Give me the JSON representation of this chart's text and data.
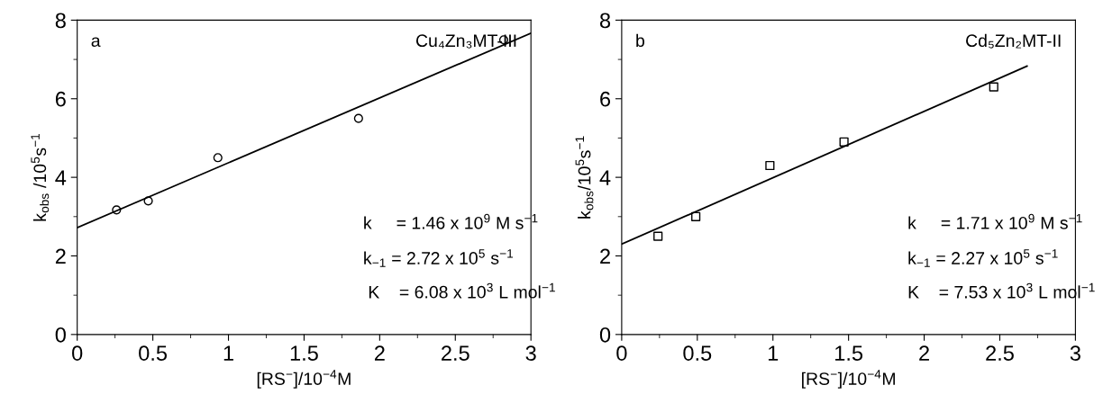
{
  "chart_data": [
    {
      "type": "scatter",
      "xlabel": "[RS$^{−}$]/10$^{−4}$M",
      "ylabel": "k$_{obs}$ /10$^{5}$s$^{−1}$",
      "series": [
        {
          "color": "#000000",
          "marker": "circle",
          "x": [
            0.26,
            0.47,
            0.93,
            1.86,
            2.82
          ],
          "values": [
            3.17,
            3.4,
            4.5,
            5.5,
            7.5
          ]
        },
        {
          "type": "line",
          "color": "#000000",
          "line_style": "solid",
          "x": [
            0,
            3
          ],
          "values": [
            2.72,
            7.67
          ]
        }
      ],
      "xlim": [
        0,
        3
      ],
      "ylim": [
        0,
        8
      ],
      "xticks": [
        0,
        {
          "value": 0.25,
          "label": null
        },
        0.5,
        {
          "value": 0.75,
          "label": null
        },
        1,
        {
          "value": 1.25,
          "label": null
        },
        1.5,
        {
          "value": 1.75,
          "label": null
        },
        2,
        {
          "value": 2.25,
          "label": null
        },
        2.5,
        {
          "value": 2.75,
          "label": null
        },
        3
      ],
      "yticks": [
        0,
        {
          "value": 1,
          "label": null
        },
        2,
        {
          "value": 3,
          "label": null
        },
        4,
        {
          "value": 5,
          "label": null
        },
        6,
        {
          "value": 7,
          "label": null
        },
        8
      ],
      "grid": false,
      "legend": false,
      "annotations": [
        "a",
        "Cu₄Zn₃MT-III",
        "k     = 1.46 x 10$^{9}$ M s$^{−1}$",
        "k$_{−1}$ = 2.72 x 10$^{5}$ s$^{−1}$",
        " K    = 6.08 x 10$^{3}$ L mol$^{−1}$"
      ]
    },
    {
      "type": "scatter",
      "xlabel": "[RS$^{−}$]/10$^{−4}$M",
      "ylabel": "k$_{obs}$/10$^{5}$s$^{−1}$",
      "series": [
        {
          "color": "#000000",
          "marker": "square",
          "x": [
            0.24,
            0.49,
            0.98,
            1.47,
            2.46
          ],
          "values": [
            2.5,
            3.0,
            4.3,
            4.9,
            6.3
          ]
        },
        {
          "type": "line",
          "color": "#000000",
          "line_style": "solid",
          "x": [
            0,
            2.68
          ],
          "values": [
            2.3,
            6.83
          ]
        }
      ],
      "xlim": [
        0,
        3
      ],
      "ylim": [
        0,
        8
      ],
      "xticks": [
        0,
        {
          "value": 0.25,
          "label": null
        },
        0.5,
        {
          "value": 0.75,
          "label": null
        },
        1,
        {
          "value": 1.25,
          "label": null
        },
        1.5,
        {
          "value": 1.75,
          "label": null
        },
        2,
        {
          "value": 2.25,
          "label": null
        },
        2.5,
        {
          "value": 2.75,
          "label": null
        },
        3
      ],
      "yticks": [
        0,
        {
          "value": 1,
          "label": null
        },
        2,
        {
          "value": 3,
          "label": null
        },
        4,
        {
          "value": 5,
          "label": null
        },
        6,
        {
          "value": 7,
          "label": null
        },
        8
      ],
      "grid": false,
      "legend": false,
      "annotations": [
        "b",
        "Cd₅Zn₂MT-II",
        "k     = 1.71 x 10$^{9}$ M s$^{−1}$",
        "k$_{−1}$ = 2.27 x 10$^{5}$ s$^{−1}$",
        "K    = 7.53 x 10$^{3}$ L mol$^{−1}$"
      ]
    }
  ]
}
